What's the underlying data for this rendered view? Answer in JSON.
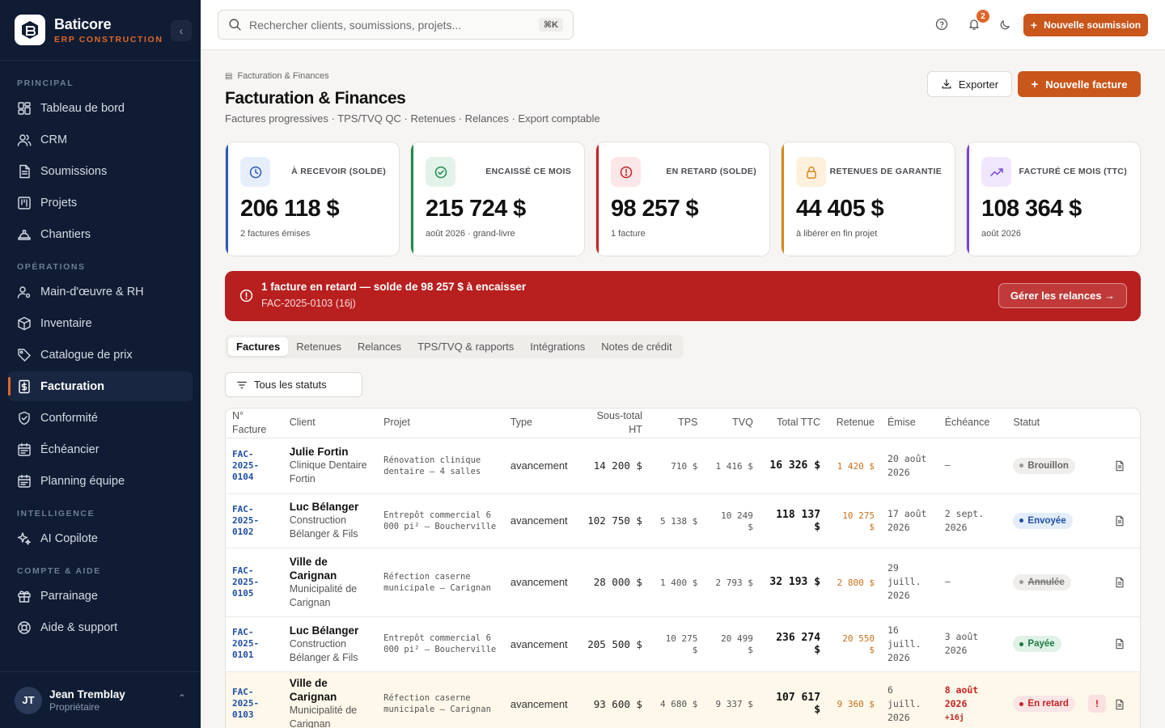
{
  "brand": {
    "name": "Baticore",
    "sub": "ERP CONSTRUCTION"
  },
  "nav": {
    "sections": [
      {
        "title": "PRINCIPAL",
        "items": [
          {
            "label": "Tableau de bord",
            "icon": "dashboard-icon"
          },
          {
            "label": "CRM",
            "icon": "users-icon"
          },
          {
            "label": "Soumissions",
            "icon": "file-icon"
          },
          {
            "label": "Projets",
            "icon": "kanban-icon"
          },
          {
            "label": "Chantiers",
            "icon": "hardhat-icon"
          }
        ]
      },
      {
        "title": "OPÉRATIONS",
        "items": [
          {
            "label": "Main-d'œuvre & RH",
            "icon": "user-cog-icon"
          },
          {
            "label": "Inventaire",
            "icon": "package-icon"
          },
          {
            "label": "Catalogue de prix",
            "icon": "tag-icon"
          },
          {
            "label": "Facturation",
            "icon": "invoice-icon",
            "active": true
          },
          {
            "label": "Conformité",
            "icon": "shield-icon"
          },
          {
            "label": "Échéancier",
            "icon": "calendar-icon"
          },
          {
            "label": "Planning équipe",
            "icon": "calendar-team-icon"
          }
        ]
      },
      {
        "title": "INTELLIGENCE",
        "items": [
          {
            "label": "AI Copilote",
            "icon": "sparkles-icon"
          }
        ]
      },
      {
        "title": "COMPTE & AIDE",
        "items": [
          {
            "label": "Parrainage",
            "icon": "gift-icon"
          },
          {
            "label": "Aide & support",
            "icon": "lifebuoy-icon"
          }
        ]
      }
    ]
  },
  "user": {
    "initials": "JT",
    "name": "Jean Tremblay",
    "role": "Propriétaire"
  },
  "topbar": {
    "search_placeholder": "Rechercher clients, soumissions, projets...",
    "shortcut": "⌘K",
    "notif_count": "2",
    "new_submission": "Nouvelle soumission"
  },
  "page": {
    "breadcrumb": "Facturation & Finances",
    "title": "Facturation & Finances",
    "subtitle": "Factures progressives · TPS/TVQ QC · Retenues · Relances · Export comptable",
    "export": "Exporter",
    "new_invoice": "Nouvelle facture"
  },
  "kpis": [
    {
      "label": "À RECEVOIR (SOLDE)",
      "value": "206 118 $",
      "sub": "2 factures émises",
      "color": "#2a59b6"
    },
    {
      "label": "ENCAISSÉ CE MOIS",
      "value": "215 724 $",
      "sub": "août 2026 · grand-livre",
      "color": "#1f8a4c"
    },
    {
      "label": "EN RETARD (SOLDE)",
      "value": "98 257 $",
      "sub": "1 facture",
      "color": "#c42424"
    },
    {
      "label": "RETENUES DE GARANTIE",
      "value": "44 405 $",
      "sub": "à libérer en fin projet",
      "color": "#d58a1c"
    },
    {
      "label": "FACTURÉ CE MOIS (TTC)",
      "value": "108 364 $",
      "sub": "août 2026",
      "color": "#7b44d8"
    }
  ],
  "alert": {
    "title": "1 facture en retard — solde de 98 257 $ à encaisser",
    "sub": "FAC-2025-0103 (16j)",
    "button": "Gérer les relances →"
  },
  "tabs": [
    "Factures",
    "Retenues",
    "Relances",
    "TPS/TVQ & rapports",
    "Intégrations",
    "Notes de crédit"
  ],
  "filter": "Tous les statuts",
  "table": {
    "headers": {
      "num": "N° Facture",
      "client": "Client",
      "projet": "Projet",
      "type": "Type",
      "ht": "Sous-total HT",
      "tps": "TPS",
      "tvq": "TVQ",
      "ttc": "Total TTC",
      "ret": "Retenue",
      "emise": "Émise",
      "ech": "Échéance",
      "statut": "Statut"
    },
    "rows": [
      {
        "num": "FAC-2025-0104",
        "client": "Julie Fortin",
        "client_sub": "Clinique Dentaire Fortin",
        "projet": "Rénovation clinique dentaire — 4 salles",
        "type": "avancement",
        "ht": "14 200 $",
        "tps": "710 $",
        "tvq": "1 416 $",
        "ttc": "16 326 $",
        "ret": "1 420 $",
        "emise": "20 août 2026",
        "ech": "—",
        "ech_extra": "",
        "statut": "Brouillon",
        "statut_cls": "draft"
      },
      {
        "num": "FAC-2025-0102",
        "client": "Luc Bélanger",
        "client_sub": "Construction Bélanger & Fils",
        "projet": "Entrepôt commercial 6 000 pi² — Boucherville",
        "type": "avancement",
        "ht": "102 750 $",
        "tps": "5 138 $",
        "tvq": "10 249 $",
        "ttc": "118 137 $",
        "ret": "10 275 $",
        "emise": "17 août 2026",
        "ech": "2 sept. 2026",
        "ech_extra": "",
        "statut": "Envoyée",
        "statut_cls": "sent"
      },
      {
        "num": "FAC-2025-0105",
        "client": "Ville de Carignan",
        "client_sub": "Municipalité de Carignan",
        "projet": "Réfection caserne municipale — Carignan",
        "type": "avancement",
        "ht": "28 000 $",
        "tps": "1 400 $",
        "tvq": "2 793 $",
        "ttc": "32 193 $",
        "ret": "2 800 $",
        "emise": "29 juill. 2026",
        "ech": "—",
        "ech_extra": "",
        "statut": "Annulée",
        "statut_cls": "cancel"
      },
      {
        "num": "FAC-2025-0101",
        "client": "Luc Bélanger",
        "client_sub": "Construction Bélanger & Fils",
        "projet": "Entrepôt commercial 6 000 pi² — Boucherville",
        "type": "avancement",
        "ht": "205 500 $",
        "tps": "10 275 $",
        "tvq": "20 499 $",
        "ttc": "236 274 $",
        "ret": "20 550 $",
        "emise": "16 juill. 2026",
        "ech": "3 août 2026",
        "ech_extra": "",
        "statut": "Payée",
        "statut_cls": "paid"
      },
      {
        "num": "FAC-2025-0103",
        "client": "Ville de Carignan",
        "client_sub": "Municipalité de Carignan",
        "projet": "Réfection caserne municipale — Carignan",
        "type": "avancement",
        "ht": "93 600 $",
        "tps": "4 680 $",
        "tvq": "9 337 $",
        "ttc": "107 617 $",
        "ret": "9 360 $",
        "emise": "6 juill. 2026",
        "ech": "8 août 2026",
        "ech_extra": "+16j",
        "statut": "En retard",
        "statut_cls": "late",
        "warn": "!"
      }
    ]
  }
}
